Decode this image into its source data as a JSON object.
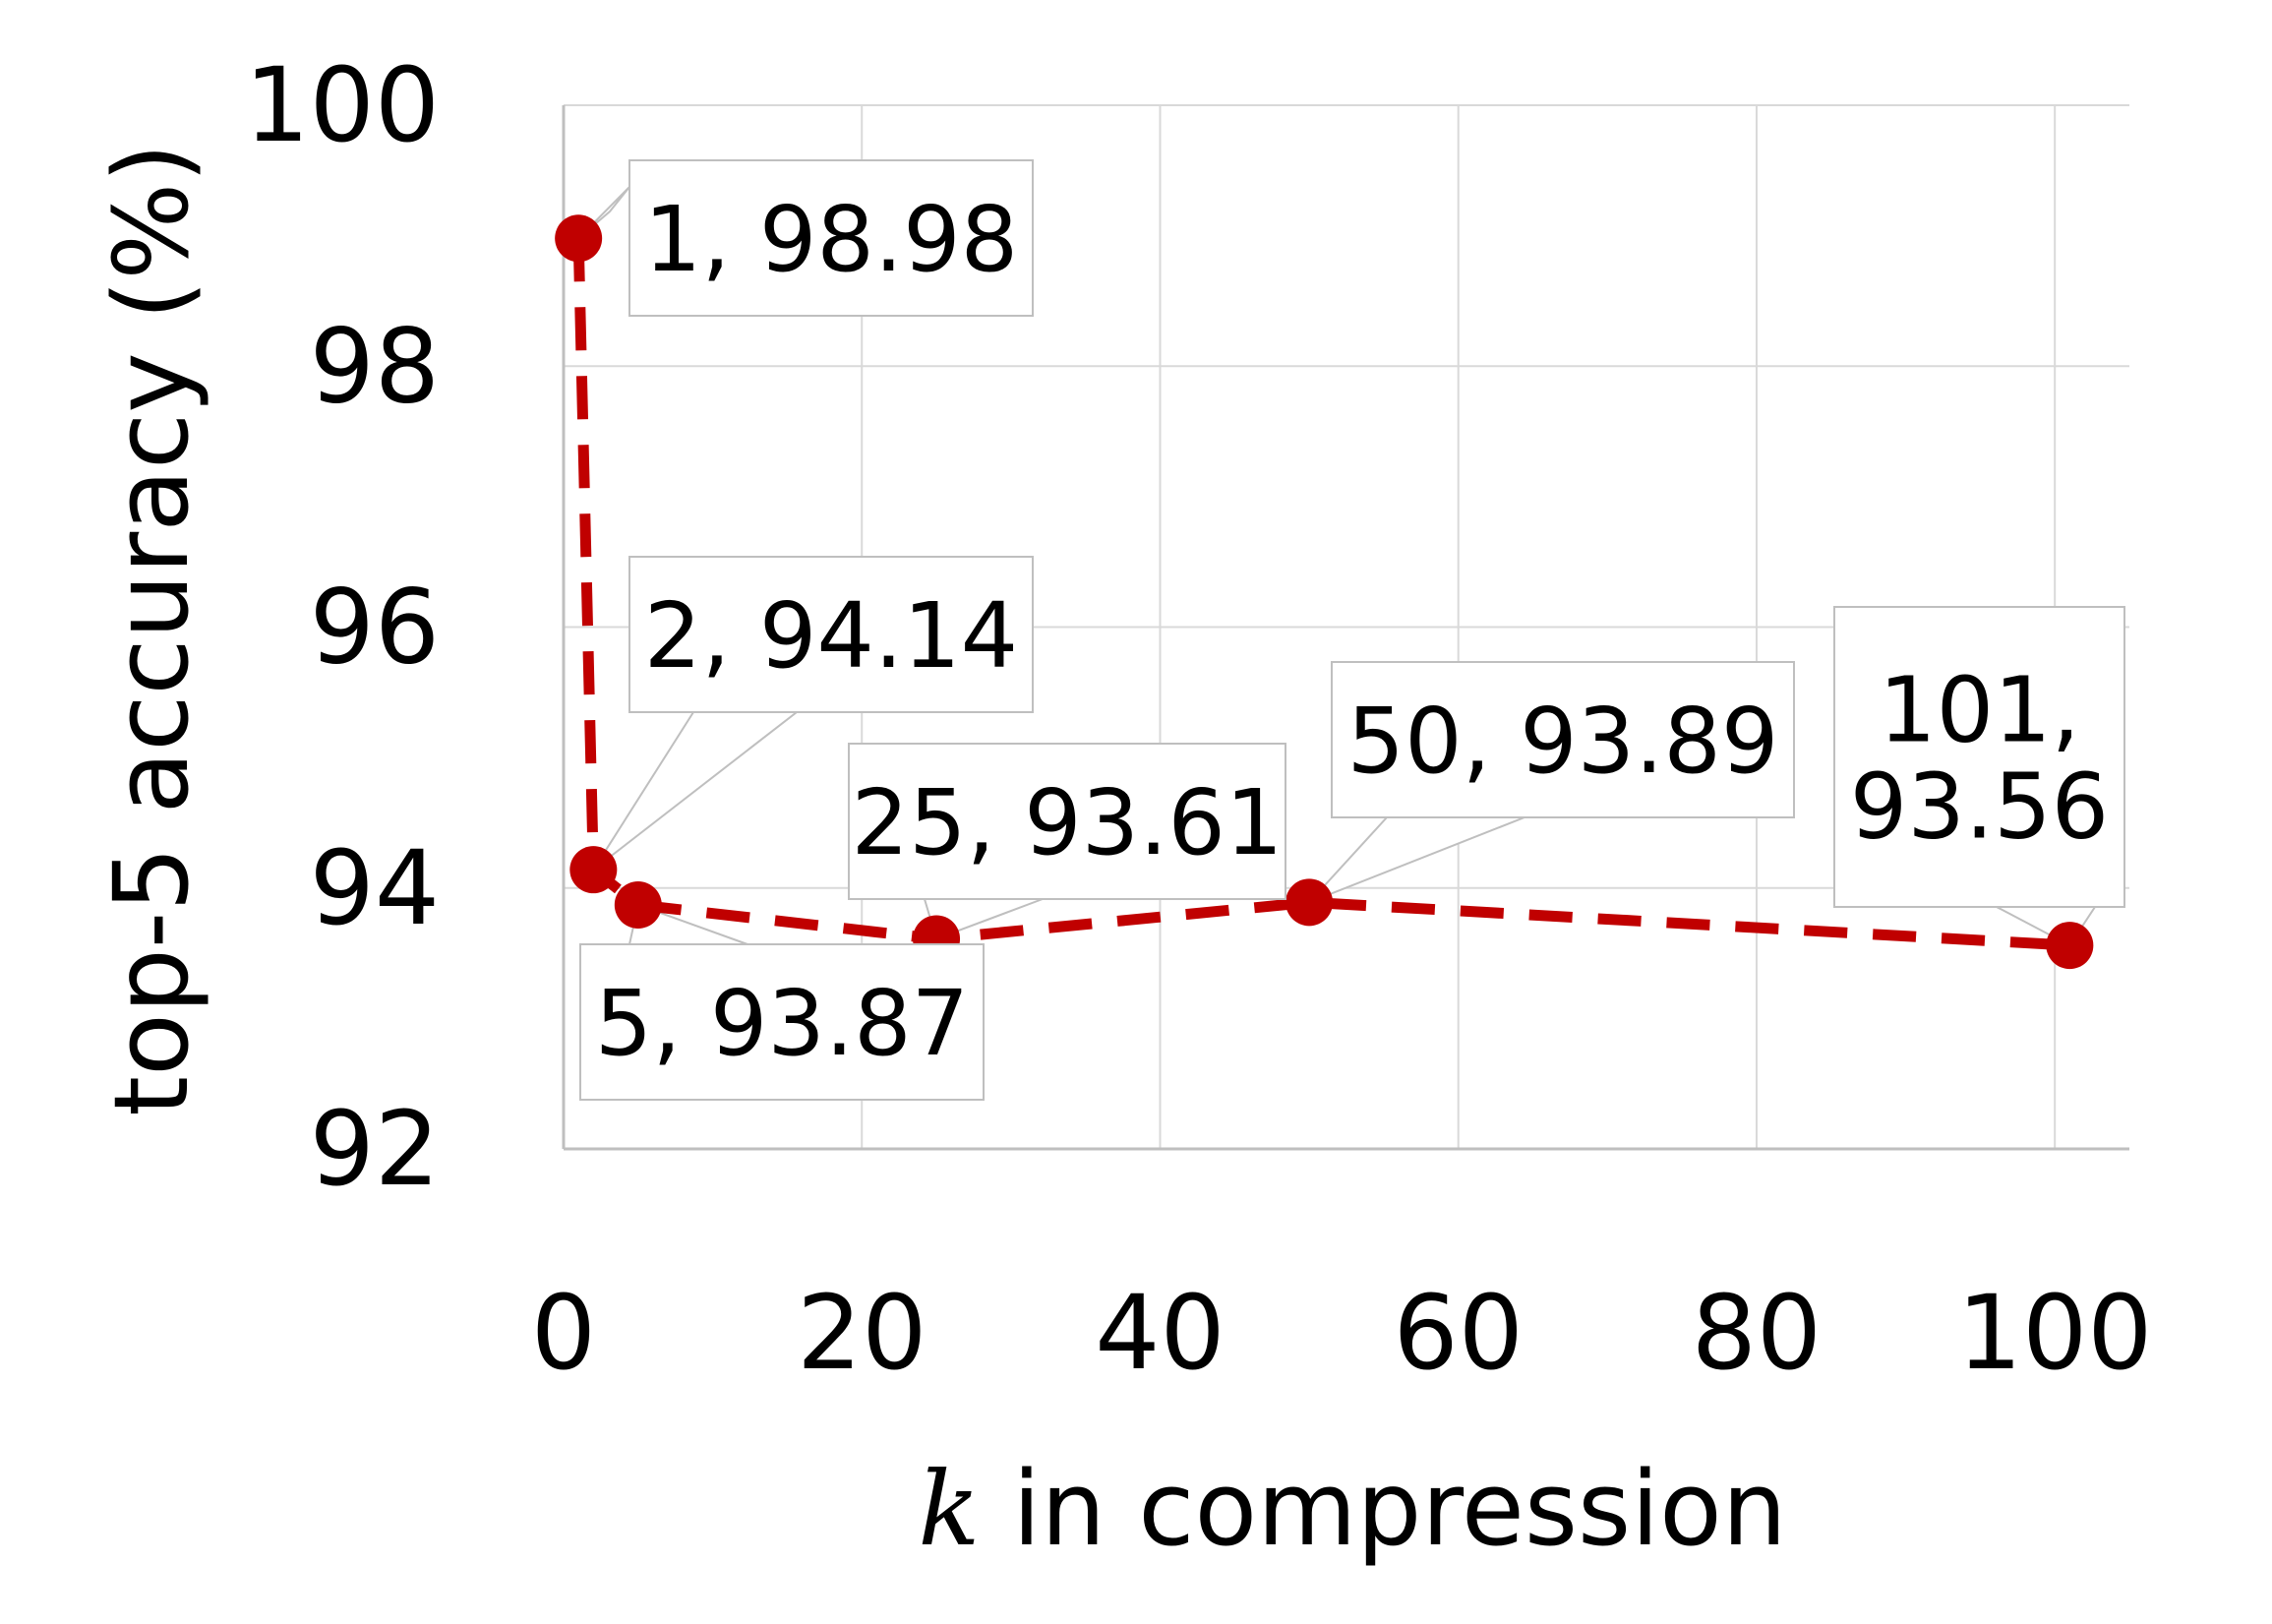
{
  "chart_data": {
    "type": "scatter",
    "xlabel_var": "k",
    "xlabel_rest": " in compression",
    "ylabel": "top-5 accuracy (%)",
    "xlim": [
      0,
      105
    ],
    "ylim": [
      92,
      100
    ],
    "x_ticks": [
      "0",
      "20",
      "40",
      "60",
      "80",
      "100"
    ],
    "y_ticks": [
      "92",
      "94",
      "96",
      "98",
      "100"
    ],
    "grid": true,
    "line_style": "dashed",
    "color": "#c00000",
    "points": [
      {
        "x": 1,
        "y": 98.98,
        "label": [
          "1, 98.98"
        ]
      },
      {
        "x": 2,
        "y": 94.14,
        "label": [
          "2, 94.14"
        ]
      },
      {
        "x": 5,
        "y": 93.87,
        "label": [
          "5, 93.87"
        ]
      },
      {
        "x": 25,
        "y": 93.61,
        "label": [
          "25, 93.61"
        ]
      },
      {
        "x": 50,
        "y": 93.89,
        "label": [
          "50, 93.89"
        ]
      },
      {
        "x": 101,
        "y": 93.56,
        "label": [
          "101,",
          "93.56"
        ]
      }
    ]
  }
}
